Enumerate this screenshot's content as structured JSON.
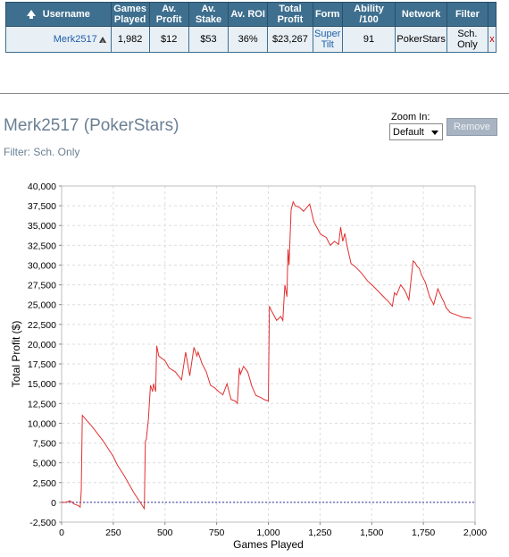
{
  "table": {
    "headers": [
      "Username",
      "Games Played",
      "Av. Profit",
      "Av. Stake",
      "Av. ROI",
      "Total Profit",
      "Form",
      "Ability /100",
      "Network",
      "Filter"
    ],
    "row": {
      "username": "Merk2517",
      "games_played": "1,982",
      "av_profit": "$12",
      "av_stake": "$53",
      "av_roi": "36%",
      "total_profit": "$23,267",
      "form": "Super Tilt",
      "ability": "91",
      "network": "PokerStars",
      "filter": "Sch. Only",
      "remove_x": "x"
    }
  },
  "header": {
    "title": "Merk2517 (PokerStars)",
    "filter_text": "Filter: Sch. Only",
    "zoom_label": "Zoom In:",
    "zoom_value": "Default",
    "remove_label": "Remove"
  },
  "colors": {
    "header_bg": "#3e6f8f",
    "row_bg": "#e8eff5",
    "line": "#e03030",
    "zero_line": "#3030a0"
  },
  "chart_data": {
    "type": "line",
    "xlabel": "Games Played",
    "ylabel": "Total Profit ($)",
    "xlim": [
      0,
      2000
    ],
    "ylim": [
      -2500,
      40000
    ],
    "x_ticks": [
      0,
      250,
      500,
      750,
      1000,
      1250,
      1500,
      1750,
      2000
    ],
    "x_tick_labels": [
      "0",
      "250",
      "500",
      "750",
      "1,000",
      "1,250",
      "1,500",
      "1,750",
      "2,000"
    ],
    "y_ticks": [
      -2500,
      0,
      2500,
      5000,
      7500,
      10000,
      12500,
      15000,
      17500,
      20000,
      22500,
      25000,
      27500,
      30000,
      32500,
      35000,
      37500,
      40000
    ],
    "y_tick_labels": [
      "-2,500",
      "0",
      "2,500",
      "5,000",
      "7,500",
      "10,000",
      "12,500",
      "15,000",
      "17,500",
      "20,000",
      "22,500",
      "25,000",
      "27,500",
      "30,000",
      "32,500",
      "35,000",
      "37,500",
      "40,000"
    ],
    "grid": true,
    "series": [
      {
        "x": [
          0,
          20,
          40,
          60,
          80,
          90,
          95,
          100,
          150,
          200,
          250,
          270,
          300,
          350,
          390,
          400,
          405,
          410,
          420,
          430,
          440,
          445,
          455,
          460,
          470,
          500,
          520,
          550,
          580,
          600,
          610,
          620,
          640,
          655,
          660,
          680,
          700,
          720,
          740,
          760,
          780,
          800,
          820,
          840,
          850,
          860,
          865,
          880,
          900,
          920,
          940,
          960,
          980,
          1000,
          1005,
          1010,
          1020,
          1040,
          1060,
          1070,
          1080,
          1090,
          1095,
          1100,
          1110,
          1120,
          1130,
          1150,
          1170,
          1200,
          1220,
          1240,
          1250,
          1260,
          1280,
          1300,
          1320,
          1340,
          1350,
          1360,
          1370,
          1380,
          1400,
          1420,
          1450,
          1480,
          1500,
          1520,
          1550,
          1580,
          1600,
          1610,
          1620,
          1640,
          1660,
          1680,
          1700,
          1710,
          1720,
          1730,
          1740,
          1760,
          1780,
          1800,
          1820,
          1840,
          1850,
          1860,
          1880,
          1900,
          1940,
          1982
        ],
        "y": [
          0,
          0,
          200,
          -200,
          -400,
          -600,
          1500,
          11000,
          9500,
          7800,
          5800,
          4700,
          3500,
          1200,
          -400,
          -800,
          7700,
          8000,
          10500,
          14800,
          14000,
          15000,
          14000,
          19800,
          18500,
          17900,
          17000,
          16500,
          15500,
          19000,
          17500,
          16000,
          19600,
          18500,
          19000,
          17500,
          16500,
          14800,
          14500,
          14000,
          13600,
          15000,
          13000,
          12800,
          12500,
          17000,
          16200,
          17200,
          16500,
          14700,
          13500,
          13300,
          13000,
          12800,
          24800,
          24500,
          24000,
          23000,
          23500,
          23000,
          27500,
          26000,
          32000,
          30000,
          37000,
          38000,
          37500,
          37300,
          36800,
          37700,
          35500,
          34500,
          34000,
          33800,
          33500,
          32500,
          33000,
          32600,
          34800,
          33000,
          34000,
          32500,
          30200,
          29800,
          29000,
          28000,
          27500,
          27000,
          26200,
          25400,
          24800,
          26500,
          26200,
          27500,
          26800,
          25600,
          30500,
          30300,
          29800,
          29600,
          28800,
          27800,
          26000,
          25000,
          27000,
          25800,
          25300,
          24600,
          24000,
          23800,
          23400,
          23267
        ]
      }
    ]
  }
}
